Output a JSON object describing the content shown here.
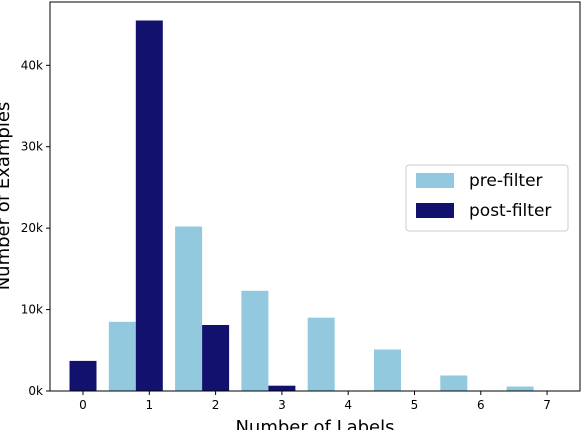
{
  "chart_data": {
    "type": "bar",
    "title": "",
    "xlabel": "Number of Labels",
    "ylabel": "Number of Examples",
    "categories": [
      "0",
      "1",
      "2",
      "3",
      "4",
      "5",
      "6",
      "7"
    ],
    "series": [
      {
        "name": "pre-filter",
        "color": "#92c9df",
        "values": [
          0,
          8500,
          20200,
          12300,
          9000,
          5100,
          1900,
          550
        ]
      },
      {
        "name": "post-filter",
        "color": "#12126e",
        "values": [
          3700,
          45500,
          8100,
          650,
          0,
          0,
          0,
          0
        ]
      }
    ],
    "yticks": [
      {
        "value": 0,
        "label": "0k"
      },
      {
        "value": 10000,
        "label": "10k"
      },
      {
        "value": 20000,
        "label": "20k"
      },
      {
        "value": 30000,
        "label": "30k"
      },
      {
        "value": 40000,
        "label": "40k"
      }
    ],
    "ylim": [
      0,
      47775
    ],
    "grid": false,
    "legend_position": "center-right"
  }
}
